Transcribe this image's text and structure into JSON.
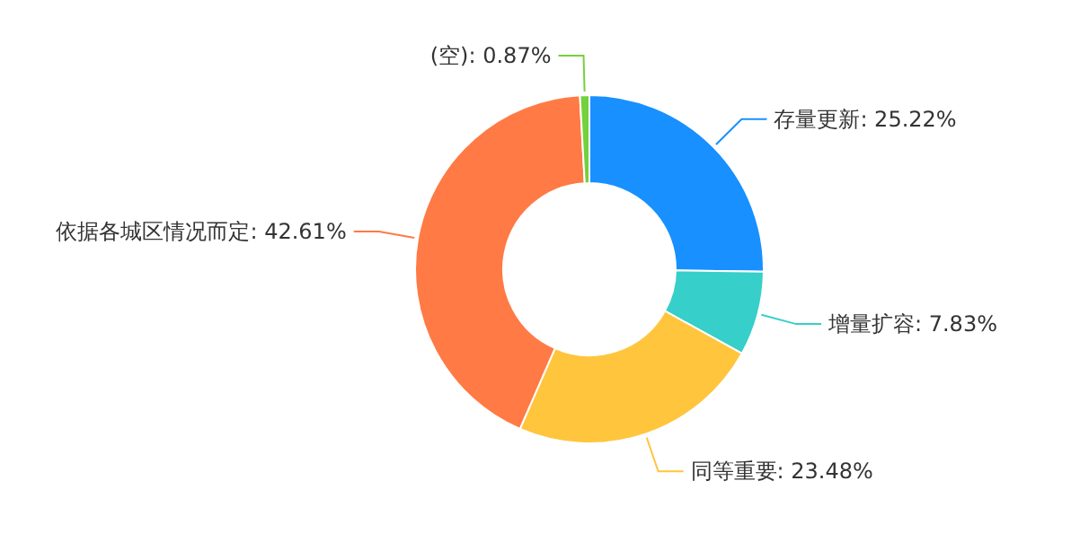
{
  "chart_data": {
    "type": "donut",
    "categories": [
      "存量更新",
      "增量扩容",
      "同等重要",
      "依据各城区情况而定",
      "(空)"
    ],
    "values": [
      25.22,
      7.83,
      23.48,
      42.61,
      0.87
    ],
    "colors": [
      "#1890ff",
      "#36cfc9",
      "#ffc53d",
      "#ff7a45",
      "#73d13d"
    ],
    "value_labels": [
      ": 25.22%",
      ": 7.83%",
      ": 23.48%",
      ": 42.61%",
      ": 0.87%"
    ],
    "legend": false
  }
}
